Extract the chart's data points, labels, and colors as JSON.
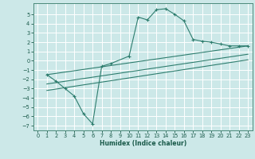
{
  "title": "",
  "xlabel": "Humidex (Indice chaleur)",
  "xlim": [
    -0.5,
    23.5
  ],
  "ylim": [
    -7.5,
    6.2
  ],
  "yticks": [
    5,
    4,
    3,
    2,
    1,
    0,
    -1,
    -2,
    -3,
    -4,
    -5,
    -6,
    -7
  ],
  "xticks": [
    0,
    1,
    2,
    3,
    4,
    5,
    6,
    7,
    8,
    9,
    10,
    11,
    12,
    13,
    14,
    15,
    16,
    17,
    18,
    19,
    20,
    21,
    22,
    23
  ],
  "background_color": "#cce8e8",
  "grid_color": "#ffffff",
  "line_color": "#2e7d6e",
  "line1_x": [
    1,
    2,
    3,
    4,
    5,
    6,
    7,
    8,
    10,
    11,
    12,
    13,
    14,
    15,
    16,
    17,
    18,
    19,
    20,
    21,
    22,
    23
  ],
  "line1_y": [
    -1.5,
    -2.2,
    -3.0,
    -3.8,
    -5.7,
    -6.8,
    -0.6,
    -0.3,
    0.5,
    4.7,
    4.4,
    5.5,
    5.6,
    5.0,
    4.3,
    2.3,
    2.1,
    2.0,
    1.8,
    1.6,
    1.6,
    1.6
  ],
  "line2_x": [
    1,
    23
  ],
  "line2_y": [
    -1.5,
    1.6
  ],
  "line3_x": [
    1,
    23
  ],
  "line3_y": [
    -2.5,
    0.7
  ],
  "line4_x": [
    1,
    23
  ],
  "line4_y": [
    -3.2,
    0.1
  ],
  "xlabel_fontsize": 5.5,
  "tick_fontsize": 4.8
}
